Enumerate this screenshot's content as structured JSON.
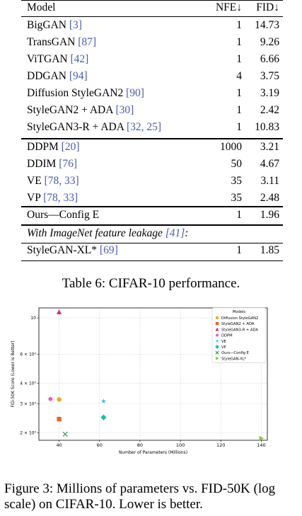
{
  "table": {
    "header": {
      "model": "Model",
      "nfe": "NFE↓",
      "fid": "FID↓"
    },
    "group1": [
      {
        "name": "BigGAN",
        "cite": "[3]",
        "nfe": "1",
        "fid": "14.73"
      },
      {
        "name": "TransGAN",
        "cite": "[87]",
        "nfe": "1",
        "fid": "9.26"
      },
      {
        "name": "ViTGAN",
        "cite": "[42]",
        "nfe": "1",
        "fid": "6.66"
      },
      {
        "name": "DDGAN",
        "cite": "[94]",
        "nfe": "4",
        "fid": "3.75"
      },
      {
        "name": "Diffusion StyleGAN2",
        "cite": "[90]",
        "nfe": "1",
        "fid": "3.19"
      },
      {
        "name": "StyleGAN2 + ADA",
        "cite": "[30]",
        "nfe": "1",
        "fid": "2.42"
      },
      {
        "name": "StyleGAN3-R + ADA",
        "cite": "[32, 25]",
        "nfe": "1",
        "fid": "10.83"
      }
    ],
    "group2": [
      {
        "name": "DDPM",
        "cite": "[20]",
        "nfe": "1000",
        "fid": "3.21"
      },
      {
        "name": "DDIM",
        "cite": "[76]",
        "nfe": "50",
        "fid": "4.67"
      },
      {
        "name": "VE",
        "cite": "[78, 33]",
        "nfe": "35",
        "fid": "3.11"
      },
      {
        "name": "VP",
        "cite": "[78, 33]",
        "nfe": "35",
        "fid": "2.48"
      }
    ],
    "ours": {
      "name": "Ours—Config E",
      "nfe": "1",
      "fid": "1.96"
    },
    "leak_label": "With ImageNet feature leakage ",
    "leak_cite": "[41]",
    "leak_suffix": ":",
    "leak_row": {
      "name": "StyleGAN-XL*",
      "cite": "[69]",
      "nfe": "1",
      "fid": "1.85"
    }
  },
  "table_caption": "Table 6: CIFAR-10 performance.",
  "figure_caption": "Figure 3: Millions of parameters vs. FID-50K (log scale) on CIFAR-10. Lower is better.",
  "chart_data": {
    "type": "scatter",
    "xlabel": "Number of Parameters (Millions)",
    "ylabel": "FID-50K Score (Lower is Better)",
    "xlim": [
      30,
      143
    ],
    "ylim": [
      1.8,
      11.5
    ],
    "yscale": "log",
    "grid": true,
    "legend_title": "Models",
    "legend_position": "top-right",
    "x_ticks": [
      "40",
      "60",
      "80",
      "100",
      "120",
      "140"
    ],
    "y_ticks": [
      {
        "value": 2,
        "label": "2 × 10⁰"
      },
      {
        "value": 3,
        "label": "3 × 10⁰"
      },
      {
        "value": 4,
        "label": "4 × 10⁰"
      },
      {
        "value": 6,
        "label": "6 × 10⁰"
      },
      {
        "value": 10,
        "label": "10"
      }
    ],
    "series": [
      {
        "name": "Diffusion StyleGAN2",
        "marker": "circle",
        "color": "#f5a623",
        "x": 40,
        "y": 3.19
      },
      {
        "name": "StyleGAN2 + ADA",
        "marker": "square",
        "color": "#e8632b",
        "x": 40,
        "y": 2.42
      },
      {
        "name": "StyleGAN3-R + ADA",
        "marker": "triangle",
        "color": "#e0245e",
        "x": 40,
        "y": 10.83
      },
      {
        "name": "DDPM",
        "marker": "hexagon",
        "color": "#f05ab4",
        "x": 35.7,
        "y": 3.21
      },
      {
        "name": "VE",
        "marker": "star",
        "color": "#35b7f0",
        "x": 62,
        "y": 3.11
      },
      {
        "name": "VP",
        "marker": "diamond",
        "color": "#1bbf9a",
        "x": 62,
        "y": 2.48
      },
      {
        "name": "Ours—Config E",
        "marker": "x",
        "color": "#2e9e4f",
        "x": 43,
        "y": 1.96
      },
      {
        "name": "StyleGAN-XL*",
        "marker": "triangle-right",
        "color": "#8cc63f",
        "x": 140,
        "y": 1.85
      }
    ]
  }
}
